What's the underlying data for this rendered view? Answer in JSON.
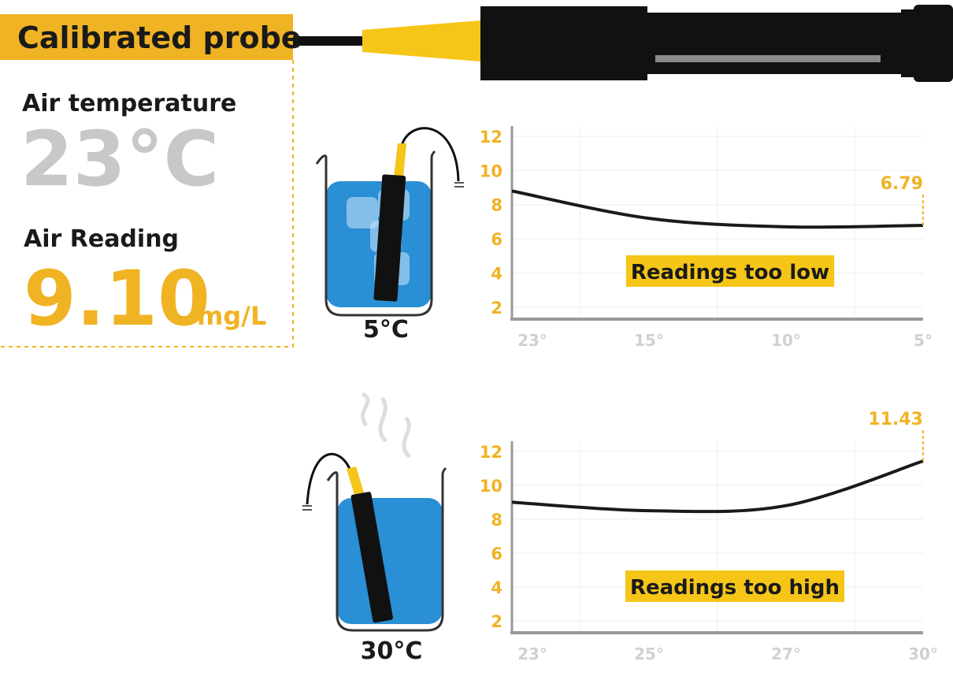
{
  "header": {
    "probe_label": "Calibrated probe",
    "air_temp_label": "Air temperature",
    "air_temp": "23°C",
    "air_reading_label": "Air Reading",
    "air_reading": "9.10",
    "air_reading_unit": "mg/L"
  },
  "beakers": {
    "cold": "5°C",
    "hot": "30°C"
  },
  "chart_data": [
    {
      "type": "line",
      "annotation": "Readings too low",
      "categories": [
        "23°",
        "15°",
        "10°",
        "5°"
      ],
      "values": [
        8.8,
        7.2,
        6.7,
        6.79
      ],
      "value_labels": [
        null,
        null,
        null,
        "6.79"
      ],
      "color": "#1a1a1a",
      "label_color": "#f0b323",
      "ylim": [
        1.3,
        12.6
      ],
      "yticks": [
        2,
        4,
        6,
        8,
        10,
        12
      ],
      "grid": true
    },
    {
      "type": "line",
      "annotation": "Readings too high",
      "categories": [
        "23°",
        "25°",
        "27°",
        "30°"
      ],
      "values": [
        9.0,
        8.5,
        8.8,
        11.43
      ],
      "value_labels": [
        null,
        null,
        null,
        "11.43"
      ],
      "color": "#1a1a1a",
      "label_color": "#f0b323",
      "ylim": [
        1.3,
        12.6
      ],
      "yticks": [
        2,
        4,
        6,
        8,
        10,
        12
      ],
      "grid": true
    }
  ]
}
